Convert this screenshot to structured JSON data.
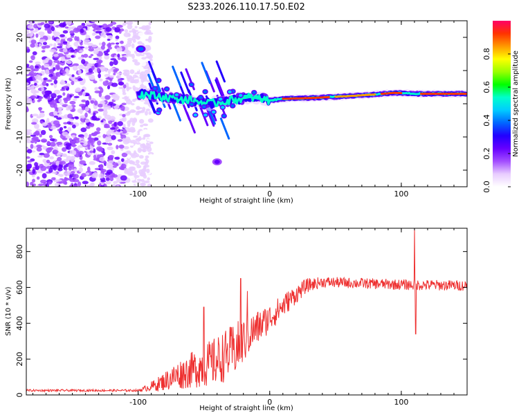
{
  "title": "S233.2026.110.17.50.E02",
  "chart_data": [
    {
      "type": "heatmap",
      "name": "spectrogram",
      "xlabel": "Height of straight line (km)",
      "ylabel": "Frequency (Hz)",
      "xlim": [
        -185,
        150
      ],
      "ylim": [
        -25,
        25
      ],
      "xticks": [
        -100,
        0,
        100
      ],
      "yticks": [
        -20,
        -10,
        0,
        10,
        20
      ],
      "colorbar": {
        "label": "Normalized spectral amplitude",
        "ticks": [
          0.0,
          0.2,
          0.4,
          0.6,
          0.8
        ],
        "range": [
          0,
          1
        ],
        "colormap": [
          "#ffffff",
          "#e8ccff",
          "#a24cff",
          "#6600ff",
          "#2200ff",
          "#0066ff",
          "#00ccff",
          "#00ffcc",
          "#00ff00",
          "#99ff00",
          "#ffff00",
          "#ff9900",
          "#ff3300",
          "#ff0066"
        ]
      },
      "ridge": [
        {
          "x": -100,
          "f": 3
        },
        {
          "x": -80,
          "f": 2
        },
        {
          "x": -60,
          "f": 1
        },
        {
          "x": -45,
          "f": 0
        },
        {
          "x": -30,
          "f": 1
        },
        {
          "x": -15,
          "f": 2
        },
        {
          "x": 0,
          "f": 1
        },
        {
          "x": 10,
          "f": 1.5
        },
        {
          "x": 30,
          "f": 1.7
        },
        {
          "x": 60,
          "f": 2.3
        },
        {
          "x": 80,
          "f": 2.8
        },
        {
          "x": 95,
          "f": 3.3
        },
        {
          "x": 110,
          "f": 3
        },
        {
          "x": 150,
          "f": 3
        }
      ],
      "features": [
        {
          "x": -98,
          "f": 16.5,
          "amplitude": 0.35
        },
        {
          "x": -40,
          "f": -17.5,
          "amplitude": 0.2
        }
      ]
    },
    {
      "type": "line",
      "name": "snr",
      "xlabel": "Height of straight line (km)",
      "ylabel": "SNR (10 * v/v)",
      "xlim": [
        -185,
        150
      ],
      "ylim": [
        0,
        930
      ],
      "xticks": [
        -100,
        0,
        100
      ],
      "yticks": [
        0,
        200,
        400,
        600,
        800
      ],
      "color": "#ee3030",
      "envelope": [
        {
          "x": -185,
          "mean": 25,
          "noise": 6
        },
        {
          "x": -100,
          "mean": 25,
          "noise": 6
        },
        {
          "x": -95,
          "mean": 35,
          "noise": 15
        },
        {
          "x": -85,
          "mean": 60,
          "noise": 40
        },
        {
          "x": -70,
          "mean": 110,
          "noise": 80
        },
        {
          "x": -55,
          "mean": 150,
          "noise": 110
        },
        {
          "x": -40,
          "mean": 190,
          "noise": 140
        },
        {
          "x": -25,
          "mean": 260,
          "noise": 150
        },
        {
          "x": -15,
          "mean": 340,
          "noise": 110
        },
        {
          "x": 0,
          "mean": 430,
          "noise": 80
        },
        {
          "x": 15,
          "mean": 530,
          "noise": 60
        },
        {
          "x": 28,
          "mean": 610,
          "noise": 40
        },
        {
          "x": 40,
          "mean": 630,
          "noise": 30
        },
        {
          "x": 100,
          "mean": 615,
          "noise": 30
        },
        {
          "x": 150,
          "mean": 610,
          "noise": 30
        }
      ],
      "spikes": [
        {
          "x": -50,
          "value": 490
        },
        {
          "x": -22,
          "value": 650
        },
        {
          "x": -17,
          "value": 580
        },
        {
          "x": 110,
          "value": 930
        },
        {
          "x": 111,
          "value": 340
        }
      ]
    }
  ]
}
